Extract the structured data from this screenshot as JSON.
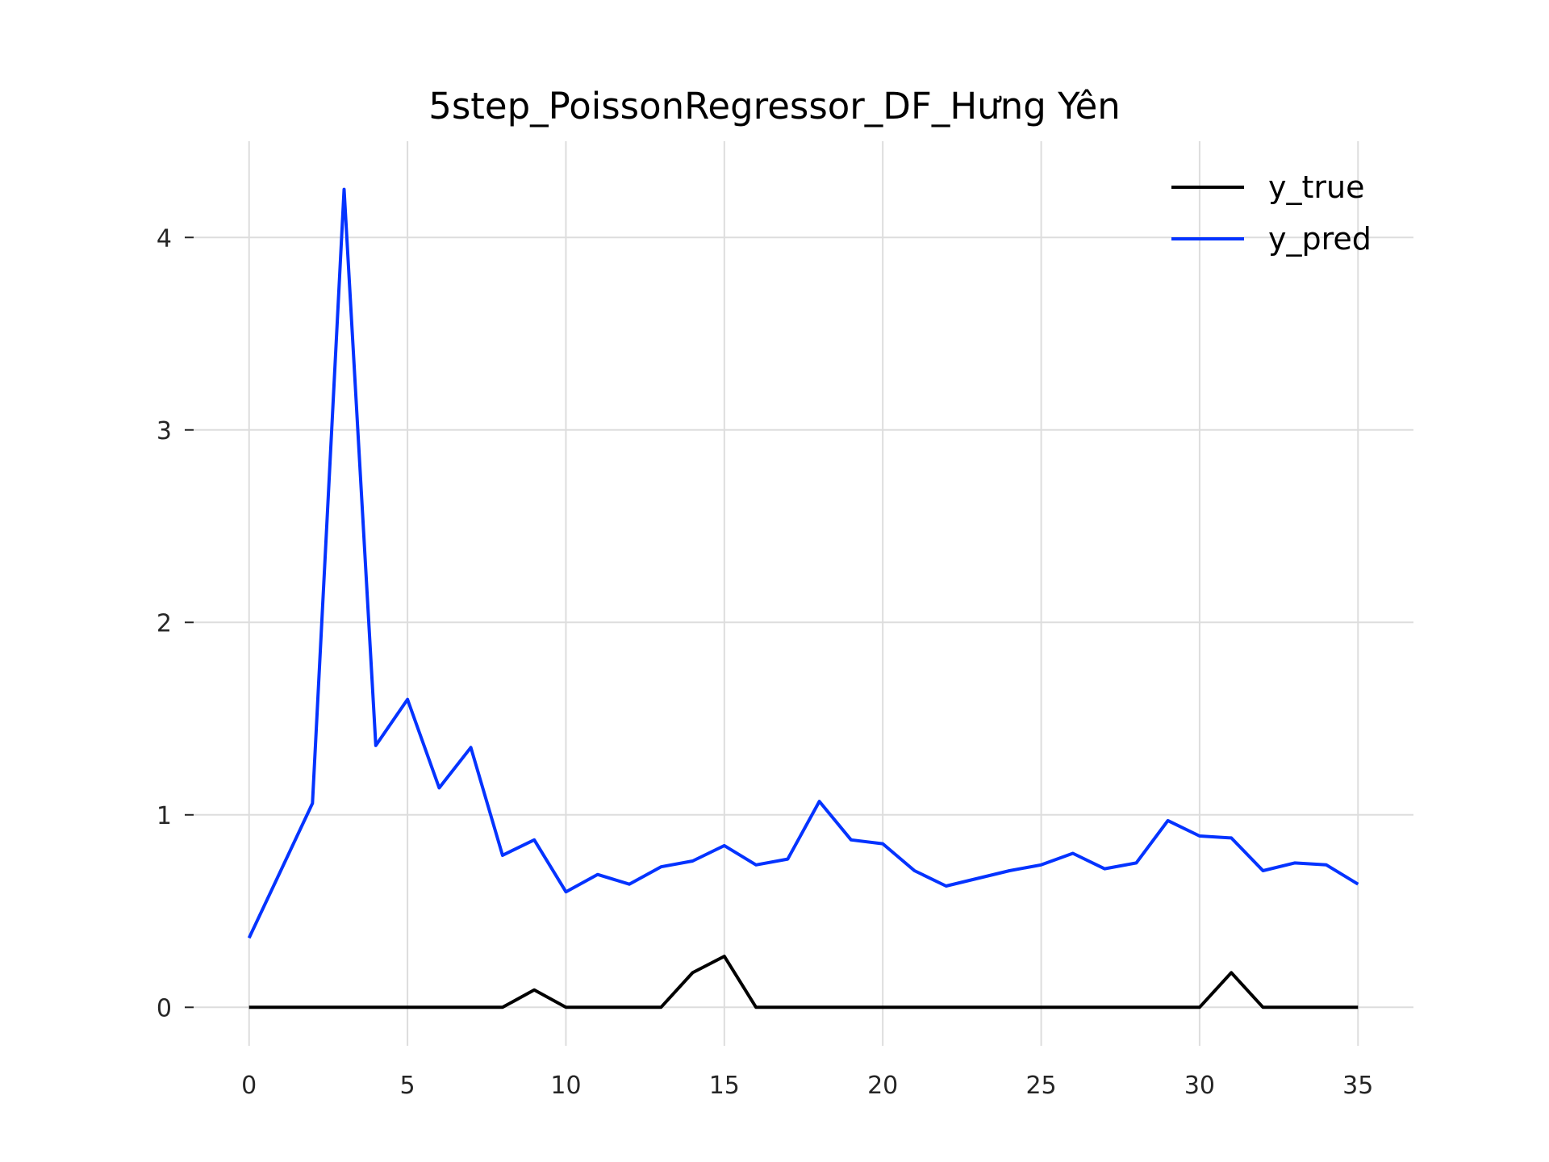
{
  "chart_data": {
    "type": "line",
    "title": "5step_PoissonRegressor_DF_Hưng Yên",
    "xlabel": "",
    "ylabel": "",
    "x": [
      0,
      1,
      2,
      3,
      4,
      5,
      6,
      7,
      8,
      9,
      10,
      11,
      12,
      13,
      14,
      15,
      16,
      17,
      18,
      19,
      20,
      21,
      22,
      23,
      24,
      25,
      26,
      27,
      28,
      29,
      30,
      31,
      32,
      33,
      34,
      35
    ],
    "xlim": [
      -1.75,
      36.75
    ],
    "ylim": [
      -0.2,
      4.5
    ],
    "xticks": [
      0,
      5,
      10,
      15,
      20,
      25,
      30,
      35
    ],
    "yticks": [
      0,
      1,
      2,
      3,
      4
    ],
    "grid": true,
    "legend_position": "top-right",
    "series": [
      {
        "name": "y_true",
        "color": "#000000",
        "values": [
          0,
          0,
          0,
          0,
          0,
          0,
          0,
          0,
          0,
          0.09,
          0,
          0,
          0,
          0,
          0.18,
          0.265,
          0,
          0,
          0,
          0,
          0,
          0,
          0,
          0,
          0,
          0,
          0,
          0,
          0,
          0,
          0,
          0.18,
          0,
          0,
          0,
          0
        ]
      },
      {
        "name": "y_pred",
        "color": "#0433ff",
        "values": [
          0.36,
          0.71,
          1.06,
          4.25,
          1.36,
          1.6,
          1.14,
          1.35,
          0.79,
          0.87,
          0.6,
          0.69,
          0.64,
          0.73,
          0.76,
          0.84,
          0.74,
          0.77,
          1.07,
          0.87,
          0.85,
          0.71,
          0.63,
          0.67,
          0.71,
          0.74,
          0.8,
          0.72,
          0.75,
          0.97,
          0.89,
          0.88,
          0.71,
          0.75,
          0.74,
          0.64
        ]
      }
    ]
  }
}
